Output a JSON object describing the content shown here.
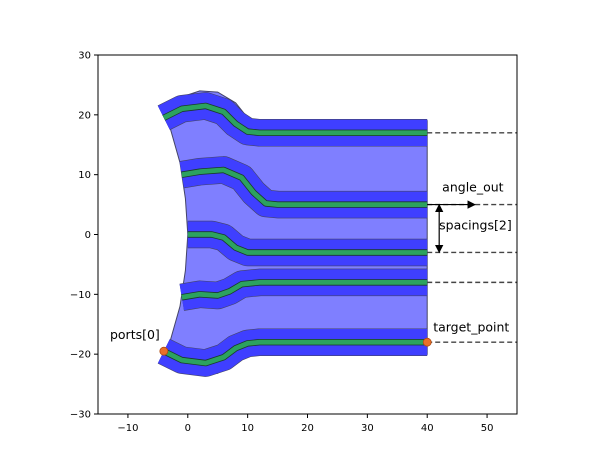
{
  "chart_data": {
    "type": "diagram-plot",
    "title": "",
    "xlabel": "",
    "ylabel": "",
    "xlim": [
      -15,
      55
    ],
    "ylim": [
      -30,
      30
    ],
    "xticks": [
      -10,
      0,
      10,
      20,
      30,
      40,
      50
    ],
    "yticks": [
      -30,
      -20,
      -10,
      0,
      10,
      20,
      30
    ],
    "grid": false,
    "colors": {
      "cladding": "#7f7fff",
      "core_band": "#3f3fff",
      "waveguide": "#2ca25f",
      "port_marker": "#e8702a",
      "edge": "#444466"
    },
    "cladding_outline": [
      [
        -4.5,
        21.5
      ],
      [
        -1,
        23
      ],
      [
        2,
        24
      ],
      [
        5,
        23.8
      ],
      [
        8,
        22
      ],
      [
        10,
        19.5
      ],
      [
        12,
        19
      ],
      [
        40,
        19
      ],
      [
        40,
        -20
      ],
      [
        12,
        -20
      ],
      [
        10,
        -20.2
      ],
      [
        8,
        -21
      ],
      [
        5,
        -23.2
      ],
      [
        2,
        -23.5
      ],
      [
        -1,
        -22.5
      ],
      [
        -4.5,
        -21.5
      ],
      [
        -3,
        -18
      ],
      [
        -1.3,
        -12
      ],
      [
        -0.4,
        -6
      ],
      [
        0,
        0
      ],
      [
        -0.4,
        6
      ],
      [
        -1.3,
        12
      ],
      [
        -3,
        18
      ]
    ],
    "waveguides": [
      {
        "start": [
          -4,
          19.5
        ],
        "end_y": 17,
        "bend_end_x": 12,
        "path": [
          [
            -4,
            19.5
          ],
          [
            -1,
            21
          ],
          [
            3,
            21.5
          ],
          [
            6,
            20.5
          ],
          [
            8,
            18.5
          ],
          [
            10,
            17.2
          ],
          [
            12,
            17
          ],
          [
            40,
            17
          ]
        ]
      },
      {
        "start": [
          -1,
          10
        ],
        "end_y": 5,
        "bend_end_x": 15,
        "path": [
          [
            -1,
            10
          ],
          [
            2,
            10.5
          ],
          [
            6,
            10.8
          ],
          [
            9,
            9.5
          ],
          [
            11,
            7
          ],
          [
            13,
            5.2
          ],
          [
            15,
            5
          ],
          [
            40,
            5
          ]
        ]
      },
      {
        "start": [
          0,
          0
        ],
        "end_y": -3,
        "bend_end_x": 12,
        "path": [
          [
            0,
            0
          ],
          [
            4,
            0
          ],
          [
            6,
            -0.5
          ],
          [
            8,
            -2.2
          ],
          [
            10,
            -3
          ],
          [
            12,
            -3
          ],
          [
            40,
            -3
          ]
        ]
      },
      {
        "start": [
          -1,
          -10.5
        ],
        "end_y": -8,
        "bend_end_x": 12,
        "path": [
          [
            -1,
            -10.5
          ],
          [
            2,
            -10
          ],
          [
            5,
            -10.2
          ],
          [
            7,
            -9.5
          ],
          [
            9,
            -8.3
          ],
          [
            12,
            -8
          ],
          [
            40,
            -8
          ]
        ]
      },
      {
        "start": [
          -4,
          -19.5
        ],
        "end_y": -18,
        "bend_end_x": 12,
        "path": [
          [
            -4,
            -19.5
          ],
          [
            -1,
            -21
          ],
          [
            3,
            -21.5
          ],
          [
            6,
            -20.5
          ],
          [
            8,
            -19
          ],
          [
            10,
            -18.2
          ],
          [
            12,
            -18
          ],
          [
            40,
            -18
          ]
        ]
      }
    ],
    "core_half_width": 0.9,
    "band_half_width": 2.2,
    "extension_lines": {
      "from_x": 40,
      "to_x": 55,
      "ys": [
        17,
        5,
        -3,
        -8,
        -18
      ],
      "style": "dashed"
    },
    "markers": [
      {
        "label": "ports[0]",
        "x": -4,
        "y": -19.5
      },
      {
        "label": "target_point",
        "x": 40,
        "y": -18
      }
    ],
    "annotations": [
      {
        "text": "angle_out",
        "x": 42.5,
        "y": 7.2,
        "arrow": {
          "from": [
            40,
            5
          ],
          "to": [
            48,
            5
          ]
        }
      },
      {
        "text": "spacings[2]",
        "x": 42,
        "y": 0.8,
        "arrow": {
          "from": [
            42,
            5
          ],
          "to": [
            42,
            -3
          ],
          "double": true
        }
      },
      {
        "text": "ports[0]",
        "x": -13,
        "y": -17.5
      },
      {
        "text": "target_point",
        "x": 41,
        "y": -16.2
      }
    ]
  }
}
